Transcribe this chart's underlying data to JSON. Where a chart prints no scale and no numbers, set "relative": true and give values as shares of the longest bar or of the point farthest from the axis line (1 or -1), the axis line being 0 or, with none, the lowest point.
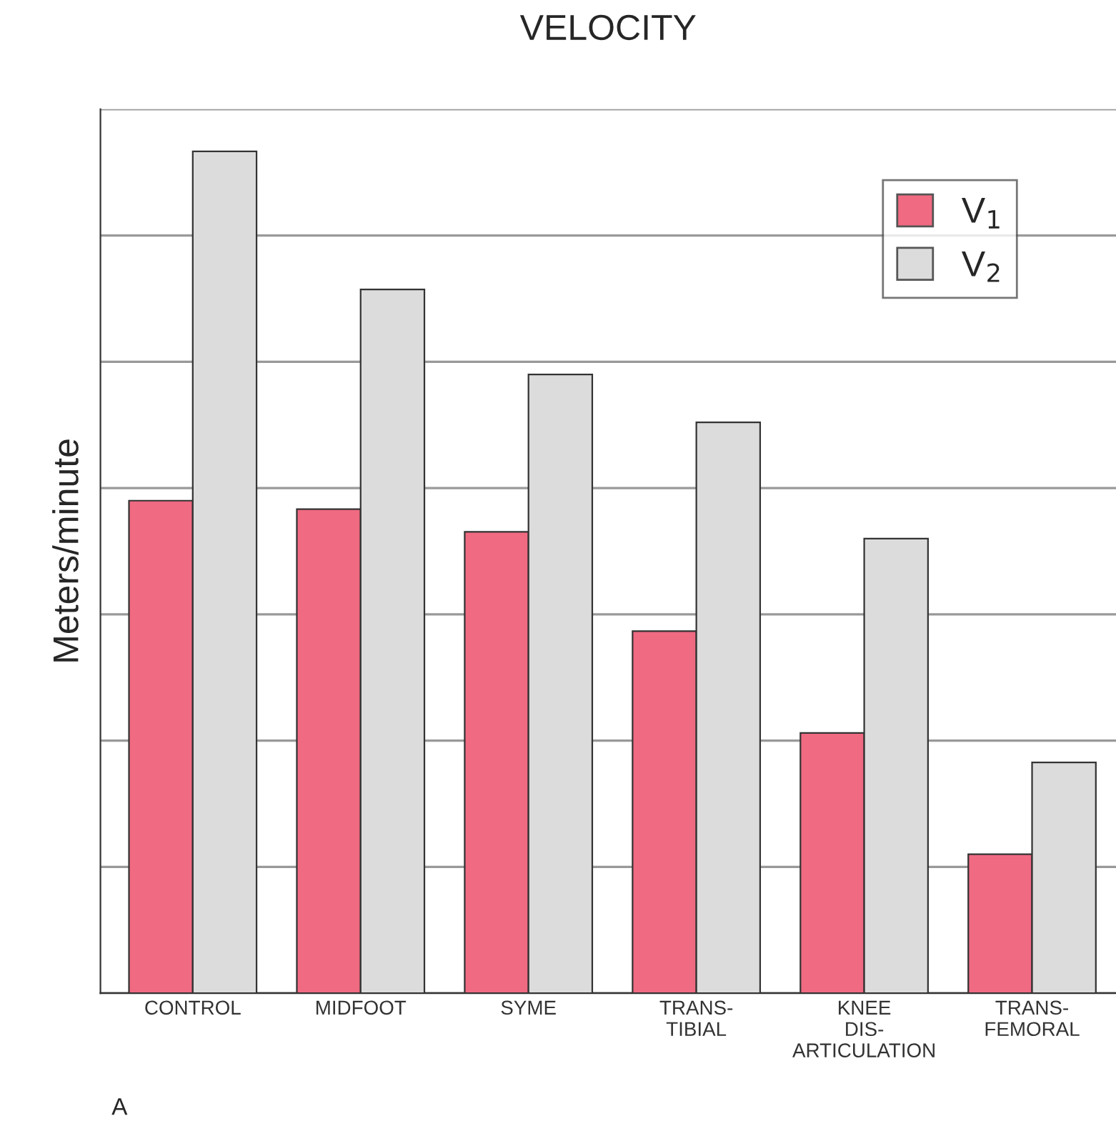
{
  "chart_data": {
    "type": "bar",
    "title": "VELOCITY",
    "ylabel": "Meters/minute",
    "relative": true,
    "categories": [
      "CONTROL",
      "MIDFOOT",
      "SYME",
      "TRANS-\nTIBIAL",
      "KNEE\nDIS-\nARTICULATION",
      "TRANS-\nFEMORAL"
    ],
    "series": [
      {
        "name": "V$_{1}$",
        "color": "#f06a82",
        "values": [
          0.585,
          0.575,
          0.548,
          0.43,
          0.309,
          0.165
        ]
      },
      {
        "name": "V$_{2}$",
        "color": "#dcdcdc",
        "values": [
          1.0,
          0.836,
          0.735,
          0.678,
          0.54,
          0.274
        ]
      }
    ],
    "grid": "y",
    "legend": "top right",
    "annotations": [
      "A"
    ]
  }
}
